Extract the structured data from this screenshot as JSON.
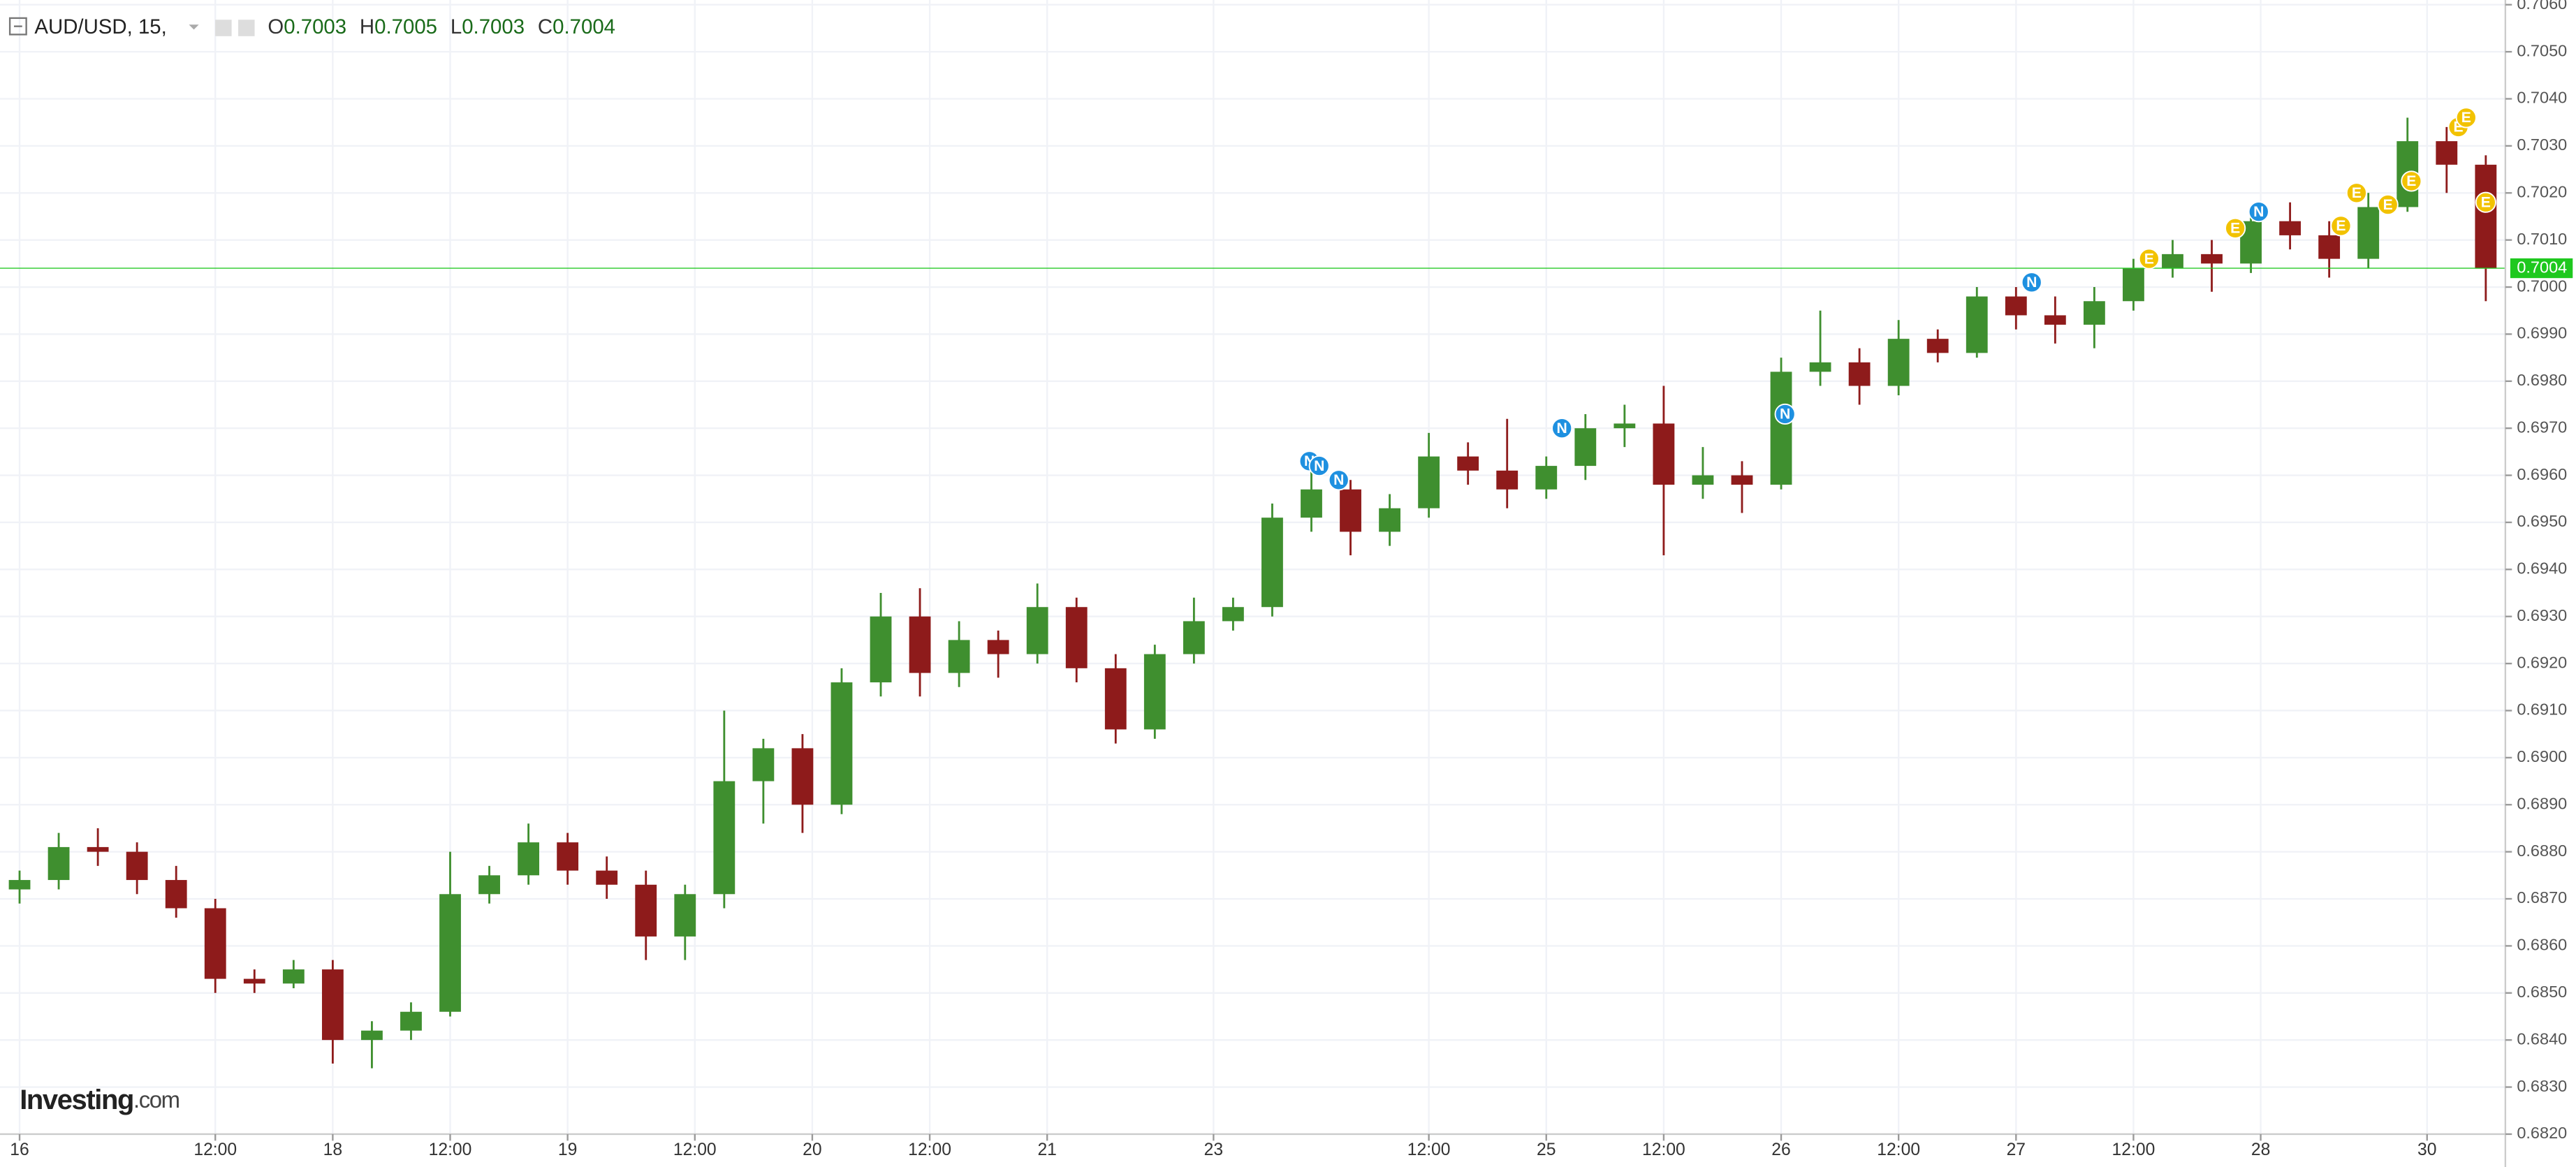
{
  "chart_data": {
    "type": "candlestick",
    "symbol": "AUD/USD, 15,",
    "ohlc": [
      {
        "label": "O",
        "value": 0.7003
      },
      {
        "label": "H",
        "value": 0.7005
      },
      {
        "label": "L",
        "value": 0.7003
      },
      {
        "label": "C",
        "value": 0.7004
      }
    ],
    "logo": {
      "name": "Investing",
      "suffix": ".com"
    },
    "up_color": "#3f8f2f",
    "down_color": "#8e1b1b",
    "wick_color": "#333333",
    "last_price": 0.7004,
    "last_price_color": "#1ec81e",
    "x": [
      0,
      1,
      2,
      3,
      4,
      5,
      6,
      7,
      8,
      9,
      10,
      11,
      12,
      13,
      14,
      15,
      16,
      17,
      18,
      19,
      20,
      21,
      22,
      23,
      24,
      25,
      26,
      27,
      28,
      29,
      30,
      31,
      32,
      33,
      34,
      35,
      36,
      37,
      38,
      39,
      40,
      41,
      42,
      43,
      44,
      45,
      46,
      47,
      48,
      49,
      50,
      51,
      52,
      53,
      54,
      55,
      56,
      57,
      58,
      59,
      60,
      61,
      62,
      63
    ],
    "open": [
      0.6872,
      0.6874,
      0.6881,
      0.688,
      0.6874,
      0.6868,
      0.6853,
      0.6852,
      0.6855,
      0.684,
      0.6842,
      0.6846,
      0.6871,
      0.6875,
      0.6882,
      0.6876,
      0.6873,
      0.6862,
      0.6871,
      0.6895,
      0.6902,
      0.689,
      0.6916,
      0.693,
      0.6918,
      0.6925,
      0.6922,
      0.6932,
      0.6919,
      0.6906,
      0.6922,
      0.6929,
      0.6932,
      0.6951,
      0.6957,
      0.6948,
      0.6953,
      0.6964,
      0.6961,
      0.6957,
      0.6962,
      0.697,
      0.6971,
      0.6958,
      0.696,
      0.6958,
      0.6982,
      0.6984,
      0.6979,
      0.6989,
      0.6986,
      0.6998,
      0.6994,
      0.6992,
      0.6997,
      0.7004,
      0.7007,
      0.7005,
      0.7014,
      0.7011,
      0.7006,
      0.7017,
      0.7031,
      0.7026
    ],
    "high": [
      0.6876,
      0.6884,
      0.6885,
      0.6882,
      0.6877,
      0.687,
      0.6855,
      0.6857,
      0.6857,
      0.6844,
      0.6848,
      0.688,
      0.6877,
      0.6886,
      0.6884,
      0.6879,
      0.6876,
      0.6873,
      0.691,
      0.6904,
      0.6905,
      0.6919,
      0.6935,
      0.6936,
      0.6929,
      0.6927,
      0.6937,
      0.6934,
      0.6922,
      0.6924,
      0.6934,
      0.6934,
      0.6954,
      0.6961,
      0.6959,
      0.6956,
      0.6969,
      0.6967,
      0.6972,
      0.6964,
      0.6973,
      0.6975,
      0.6979,
      0.6966,
      0.6963,
      0.6985,
      0.6995,
      0.6987,
      0.6993,
      0.6991,
      0.7,
      0.7,
      0.6998,
      0.7,
      0.7006,
      0.701,
      0.701,
      0.7016,
      0.7018,
      0.7014,
      0.702,
      0.7036,
      0.7034,
      0.7028
    ],
    "low": [
      0.6869,
      0.6872,
      0.6877,
      0.6871,
      0.6866,
      0.685,
      0.685,
      0.6851,
      0.6835,
      0.6834,
      0.684,
      0.6845,
      0.6869,
      0.6873,
      0.6873,
      0.687,
      0.6857,
      0.6857,
      0.6868,
      0.6886,
      0.6884,
      0.6888,
      0.6913,
      0.6913,
      0.6915,
      0.6917,
      0.692,
      0.6916,
      0.6903,
      0.6904,
      0.692,
      0.6927,
      0.693,
      0.6948,
      0.6943,
      0.6945,
      0.6951,
      0.6958,
      0.6953,
      0.6955,
      0.6959,
      0.6966,
      0.6943,
      0.6955,
      0.6952,
      0.6957,
      0.6979,
      0.6975,
      0.6977,
      0.6984,
      0.6985,
      0.6991,
      0.6988,
      0.6987,
      0.6995,
      0.7002,
      0.6999,
      0.7003,
      0.7008,
      0.7002,
      0.7004,
      0.7016,
      0.702,
      0.6997
    ],
    "close": [
      0.6874,
      0.6881,
      0.688,
      0.6874,
      0.6868,
      0.6853,
      0.6852,
      0.6855,
      0.684,
      0.6842,
      0.6846,
      0.6871,
      0.6875,
      0.6882,
      0.6876,
      0.6873,
      0.6862,
      0.6871,
      0.6895,
      0.6902,
      0.689,
      0.6916,
      0.693,
      0.6918,
      0.6925,
      0.6922,
      0.6932,
      0.6919,
      0.6906,
      0.6922,
      0.6929,
      0.6932,
      0.6951,
      0.6957,
      0.6948,
      0.6953,
      0.6964,
      0.6961,
      0.6957,
      0.6962,
      0.697,
      0.6971,
      0.6958,
      0.696,
      0.6958,
      0.6982,
      0.6984,
      0.6979,
      0.6989,
      0.6986,
      0.6998,
      0.6994,
      0.6992,
      0.6997,
      0.7004,
      0.7007,
      0.7005,
      0.7014,
      0.7011,
      0.7006,
      0.7017,
      0.7031,
      0.7026,
      0.7004
    ],
    "events": [
      {
        "label": "N",
        "x": 32.95,
        "price": 0.6963,
        "color": "#1e90e0"
      },
      {
        "label": "N",
        "x": 33.2,
        "price": 0.6962,
        "color": "#1e90e0"
      },
      {
        "label": "N",
        "x": 33.7,
        "price": 0.6959,
        "color": "#1e90e0"
      },
      {
        "label": "N",
        "x": 39.4,
        "price": 0.697,
        "color": "#1e90e0"
      },
      {
        "label": "N",
        "x": 45.1,
        "price": 0.6973,
        "color": "#1e90e0"
      },
      {
        "label": "N",
        "x": 51.4,
        "price": 0.7001,
        "color": "#1e90e0"
      },
      {
        "label": "N",
        "x": 57.2,
        "price": 0.7016,
        "color": "#1e90e0"
      },
      {
        "label": "E",
        "x": 54.4,
        "price": 0.7006,
        "color": "#f2c200"
      },
      {
        "label": "E",
        "x": 56.6,
        "price": 0.70125,
        "color": "#f2c200"
      },
      {
        "label": "E",
        "x": 59.3,
        "price": 0.7013,
        "color": "#f2c200"
      },
      {
        "label": "E",
        "x": 59.7,
        "price": 0.702,
        "color": "#f2c200"
      },
      {
        "label": "E",
        "x": 60.5,
        "price": 0.70175,
        "color": "#f2c200"
      },
      {
        "label": "E",
        "x": 61.1,
        "price": 0.70225,
        "color": "#f2c200"
      },
      {
        "label": "E",
        "x": 62.3,
        "price": 0.7034,
        "color": "#f2c200"
      },
      {
        "label": "E",
        "x": 62.5,
        "price": 0.7036,
        "color": "#f2c200"
      },
      {
        "label": "E",
        "x": 63,
        "price": 0.7018,
        "color": "#f2c200"
      }
    ],
    "xlim": [
      -0.5,
      63.5
    ],
    "xticks": [
      {
        "value": 0,
        "label": "16"
      },
      {
        "value": 5,
        "label": "12:00"
      },
      {
        "value": 8,
        "label": "18"
      },
      {
        "value": 11,
        "label": "12:00"
      },
      {
        "value": 14,
        "label": "19"
      },
      {
        "value": 17.25,
        "label": "12:00"
      },
      {
        "value": 20.25,
        "label": "20"
      },
      {
        "value": 23.25,
        "label": "12:00"
      },
      {
        "value": 26.25,
        "label": "21"
      },
      {
        "value": 30.5,
        "label": "23"
      },
      {
        "value": 36,
        "label": "12:00"
      },
      {
        "value": 39,
        "label": "25"
      },
      {
        "value": 42,
        "label": "12:00"
      },
      {
        "value": 45,
        "label": "26"
      },
      {
        "value": 48,
        "label": "12:00"
      },
      {
        "value": 51,
        "label": "27"
      },
      {
        "value": 54,
        "label": "12:00"
      },
      {
        "value": 57.25,
        "label": "28"
      },
      {
        "value": 61.5,
        "label": "30"
      }
    ],
    "ylim": [
      0.682,
      0.7061
    ],
    "yticks": [
      {
        "value": 0.682,
        "label": "0.6820"
      },
      {
        "value": 0.683,
        "label": "0.6830"
      },
      {
        "value": 0.684,
        "label": "0.6840"
      },
      {
        "value": 0.685,
        "label": "0.6850"
      },
      {
        "value": 0.686,
        "label": "0.6860"
      },
      {
        "value": 0.687,
        "label": "0.6870"
      },
      {
        "value": 0.688,
        "label": "0.6880"
      },
      {
        "value": 0.689,
        "label": "0.6890"
      },
      {
        "value": 0.69,
        "label": "0.6900"
      },
      {
        "value": 0.691,
        "label": "0.6910"
      },
      {
        "value": 0.692,
        "label": "0.6920"
      },
      {
        "value": 0.693,
        "label": "0.6930"
      },
      {
        "value": 0.694,
        "label": "0.6940"
      },
      {
        "value": 0.695,
        "label": "0.6950"
      },
      {
        "value": 0.696,
        "label": "0.6960"
      },
      {
        "value": 0.697,
        "label": "0.6970"
      },
      {
        "value": 0.698,
        "label": "0.6980"
      },
      {
        "value": 0.699,
        "label": "0.6990"
      },
      {
        "value": 0.7,
        "label": "0.7000"
      },
      {
        "value": 0.701,
        "label": "0.7010"
      },
      {
        "value": 0.702,
        "label": "0.7020"
      },
      {
        "value": 0.703,
        "label": "0.7030"
      },
      {
        "value": 0.704,
        "label": "0.7040"
      },
      {
        "value": 0.705,
        "label": "0.7050"
      },
      {
        "value": 0.706,
        "label": "0.7060"
      }
    ],
    "grid": true
  }
}
